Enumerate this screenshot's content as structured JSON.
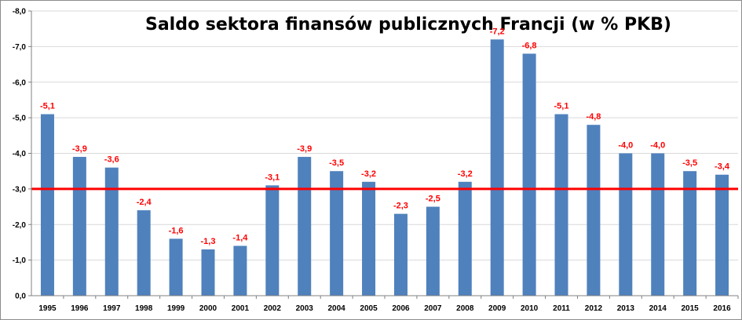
{
  "chart_data": {
    "type": "bar",
    "title": "Saldo sektora finansów publicznych Francji (w % PKB)",
    "xlabel": "",
    "ylabel": "",
    "categories": [
      "1995",
      "1996",
      "1997",
      "1998",
      "1999",
      "2000",
      "2001",
      "2002",
      "2003",
      "2004",
      "2005",
      "2006",
      "2007",
      "2008",
      "2009",
      "2010",
      "2011",
      "2012",
      "2013",
      "2014",
      "2015",
      "2016"
    ],
    "values": [
      -5.1,
      -3.9,
      -3.6,
      -2.4,
      -1.6,
      -1.3,
      -1.4,
      -3.1,
      -3.9,
      -3.5,
      -3.2,
      -2.3,
      -2.5,
      -3.2,
      -7.2,
      -6.8,
      -5.1,
      -4.8,
      -4.0,
      -4.0,
      -3.5,
      -3.4
    ],
    "data_labels": [
      "-5,1",
      "-3,9",
      "-3,6",
      "-2,4",
      "-1,6",
      "-1,3",
      "-1,4",
      "-3,1",
      "-3,9",
      "-3,5",
      "-3,2",
      "-2,3",
      "-2,5",
      "-3,2",
      "-7,2",
      "-6,8",
      "-5,1",
      "-4,8",
      "-4,0",
      "-4,0",
      "-3,5",
      "-3,4"
    ],
    "ylim": [
      0,
      -8
    ],
    "y_axis_reversed": true,
    "y_ticks": [
      0,
      -1,
      -2,
      -3,
      -4,
      -5,
      -6,
      -7,
      -8
    ],
    "y_tick_labels": [
      "0,0",
      "-1,0",
      "-2,0",
      "-3,0",
      "-4,0",
      "-5,0",
      "-6,0",
      "-7,0",
      "-8,0"
    ],
    "reference_line": -3.0,
    "grid": true,
    "legend": "none",
    "colors": {
      "bar": "#4f81bd",
      "data_label": "#ff0000",
      "reference_line": "#ff0000",
      "grid": "#d9d9d9",
      "axis": "#808080"
    }
  }
}
